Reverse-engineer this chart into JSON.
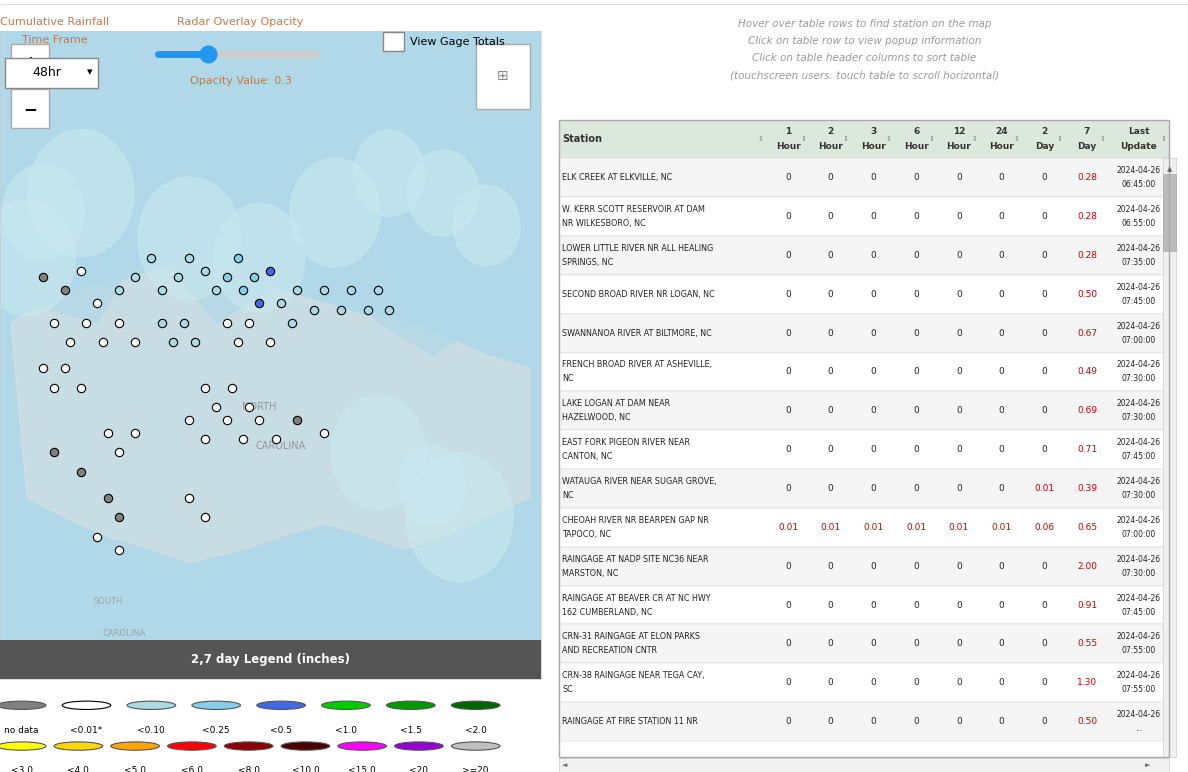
{
  "title_instructions": [
    "Hover over table rows to find station on the map",
    "Click on table row to view popup information",
    "Click on table header columns to sort table",
    "(touchscreen users: touch table to scroll horizontal)"
  ],
  "controls_left": {
    "label1": "Cumulative Rainfall",
    "label2": "Time Frame",
    "dropdown": "48hr"
  },
  "controls_mid": {
    "label": "Radar Overlay Opacity",
    "value_label": "Opacity Value: 0.3"
  },
  "controls_right": {
    "checkbox_label": "View Gage Totals"
  },
  "table_headers": [
    "Station",
    "1\nHour",
    "2\nHour",
    "3\nHour",
    "6\nHour",
    "12\nHour",
    "24\nHour",
    "2\nDay",
    "7\nDay",
    "Last\nUpdate"
  ],
  "table_data": [
    [
      "ELK CREEK AT ELKVILLE, NC",
      "0",
      "0",
      "0",
      "0",
      "0",
      "0",
      "0",
      "0.28",
      "2024-04-26\n06:45:00"
    ],
    [
      "W. KERR SCOTT RESERVOIR AT DAM\nNR WILKESBORO, NC",
      "0",
      "0",
      "0",
      "0",
      "0",
      "0",
      "0",
      "0.28",
      "2024-04-26\n06:55:00"
    ],
    [
      "LOWER LITTLE RIVER NR ALL HEALING\nSPRINGS, NC",
      "0",
      "0",
      "0",
      "0",
      "0",
      "0",
      "0",
      "0.28",
      "2024-04-26\n07:35:00"
    ],
    [
      "SECOND BROAD RIVER NR LOGAN, NC",
      "0",
      "0",
      "0",
      "0",
      "0",
      "0",
      "0",
      "0.50",
      "2024-04-26\n07:45:00"
    ],
    [
      "SWANNANOA RIVER AT BILTMORE, NC",
      "0",
      "0",
      "0",
      "0",
      "0",
      "0",
      "0",
      "0.67",
      "2024-04-26\n07:00:00"
    ],
    [
      "FRENCH BROAD RIVER AT ASHEVILLE,\nNC",
      "0",
      "0",
      "0",
      "0",
      "0",
      "0",
      "0",
      "0.49",
      "2024-04-26\n07:30:00"
    ],
    [
      "LAKE LOGAN AT DAM NEAR\nHAZELWOOD, NC",
      "0",
      "0",
      "0",
      "0",
      "0",
      "0",
      "0",
      "0.69",
      "2024-04-26\n07:30:00"
    ],
    [
      "EAST FORK PIGEON RIVER NEAR\nCANTON, NC",
      "0",
      "0",
      "0",
      "0",
      "0",
      "0",
      "0",
      "0.71",
      "2024-04-26\n07:45:00"
    ],
    [
      "WATAUGA RIVER NEAR SUGAR GROVE,\nNC",
      "0",
      "0",
      "0",
      "0",
      "0",
      "0",
      "0.01",
      "0.39",
      "2024-04-26\n07:30:00"
    ],
    [
      "CHEOAH RIVER NR BEARPEN GAP NR\nTAPOCO, NC",
      "0.01",
      "0.01",
      "0.01",
      "0.01",
      "0.01",
      "0.01",
      "0.06",
      "0.65",
      "2024-04-26\n07:00:00"
    ],
    [
      "RAINGAGE AT NADP SITE NC36 NEAR\nMARSTON, NC",
      "0",
      "0",
      "0",
      "0",
      "0",
      "0",
      "0",
      "2.00",
      "2024-04-26\n07:30:00"
    ],
    [
      "RAINGAGE AT BEAVER CR AT NC HWY\n162 CUMBERLAND, NC",
      "0",
      "0",
      "0",
      "0",
      "0",
      "0",
      "0",
      "0.91",
      "2024-04-26\n07:45:00"
    ],
    [
      "CRN-31 RAINGAGE AT ELON PARKS\nAND RECREATION CNTR",
      "0",
      "0",
      "0",
      "0",
      "0",
      "0",
      "0",
      "0.55",
      "2024-04-26\n07:55:00"
    ],
    [
      "CRN-38 RAINGAGE NEAR TEGA CAY,\nSC",
      "0",
      "0",
      "0",
      "0",
      "0",
      "0",
      "0",
      "1.30",
      "2024-04-26\n07:55:00"
    ],
    [
      "RAINGAGE AT FIRE STATION 11 NR",
      "0",
      "0",
      "0",
      "0",
      "0",
      "0",
      "0",
      "0.50",
      "2024-04-26\n..."
    ]
  ],
  "legend_row1": [
    {
      "label": "no data",
      "color": "#808080",
      "fill": true
    },
    {
      "label": "<0.01*",
      "color": "#ffffff",
      "fill": true,
      "border": "#000000"
    },
    {
      "label": "<0.10",
      "color": "#add8e6",
      "fill": true
    },
    {
      "label": "<0.25",
      "color": "#87ceeb",
      "fill": true
    },
    {
      "label": "<0.5",
      "color": "#4169e1",
      "fill": true
    },
    {
      "label": "<1.0",
      "color": "#00cc00",
      "fill": true
    },
    {
      "label": "<1.5",
      "color": "#009900",
      "fill": true
    },
    {
      "label": "<2.0",
      "color": "#006600",
      "fill": true
    }
  ],
  "legend_row2": [
    {
      "label": "<3.0",
      "color": "#ffff00",
      "fill": true
    },
    {
      "label": "<4.0",
      "color": "#ffd700",
      "fill": true
    },
    {
      "label": "<5.0",
      "color": "#ffa500",
      "fill": true
    },
    {
      "label": "<6.0",
      "color": "#ff0000",
      "fill": true
    },
    {
      "label": "<8.0",
      "color": "#8b0000",
      "fill": true
    },
    {
      "label": "<10.0",
      "color": "#4b0000",
      "fill": true
    },
    {
      "label": "<15.0",
      "color": "#ff00ff",
      "fill": true
    },
    {
      "label": "<20",
      "color": "#9400d3",
      "fill": true
    },
    {
      "label": ">=20",
      "color": "#c0c0c0",
      "fill": true
    }
  ],
  "map_legend_title": "2,7 day Legend (inches)",
  "map_bg_color": "#b0d8e8",
  "map_land_color": "#e8e8e8",
  "header_bg": "#dce8dc",
  "table_bg_alt": "#f5f5f5",
  "table_border": "#cccccc",
  "scrollbar_color": "#aaaaaa"
}
